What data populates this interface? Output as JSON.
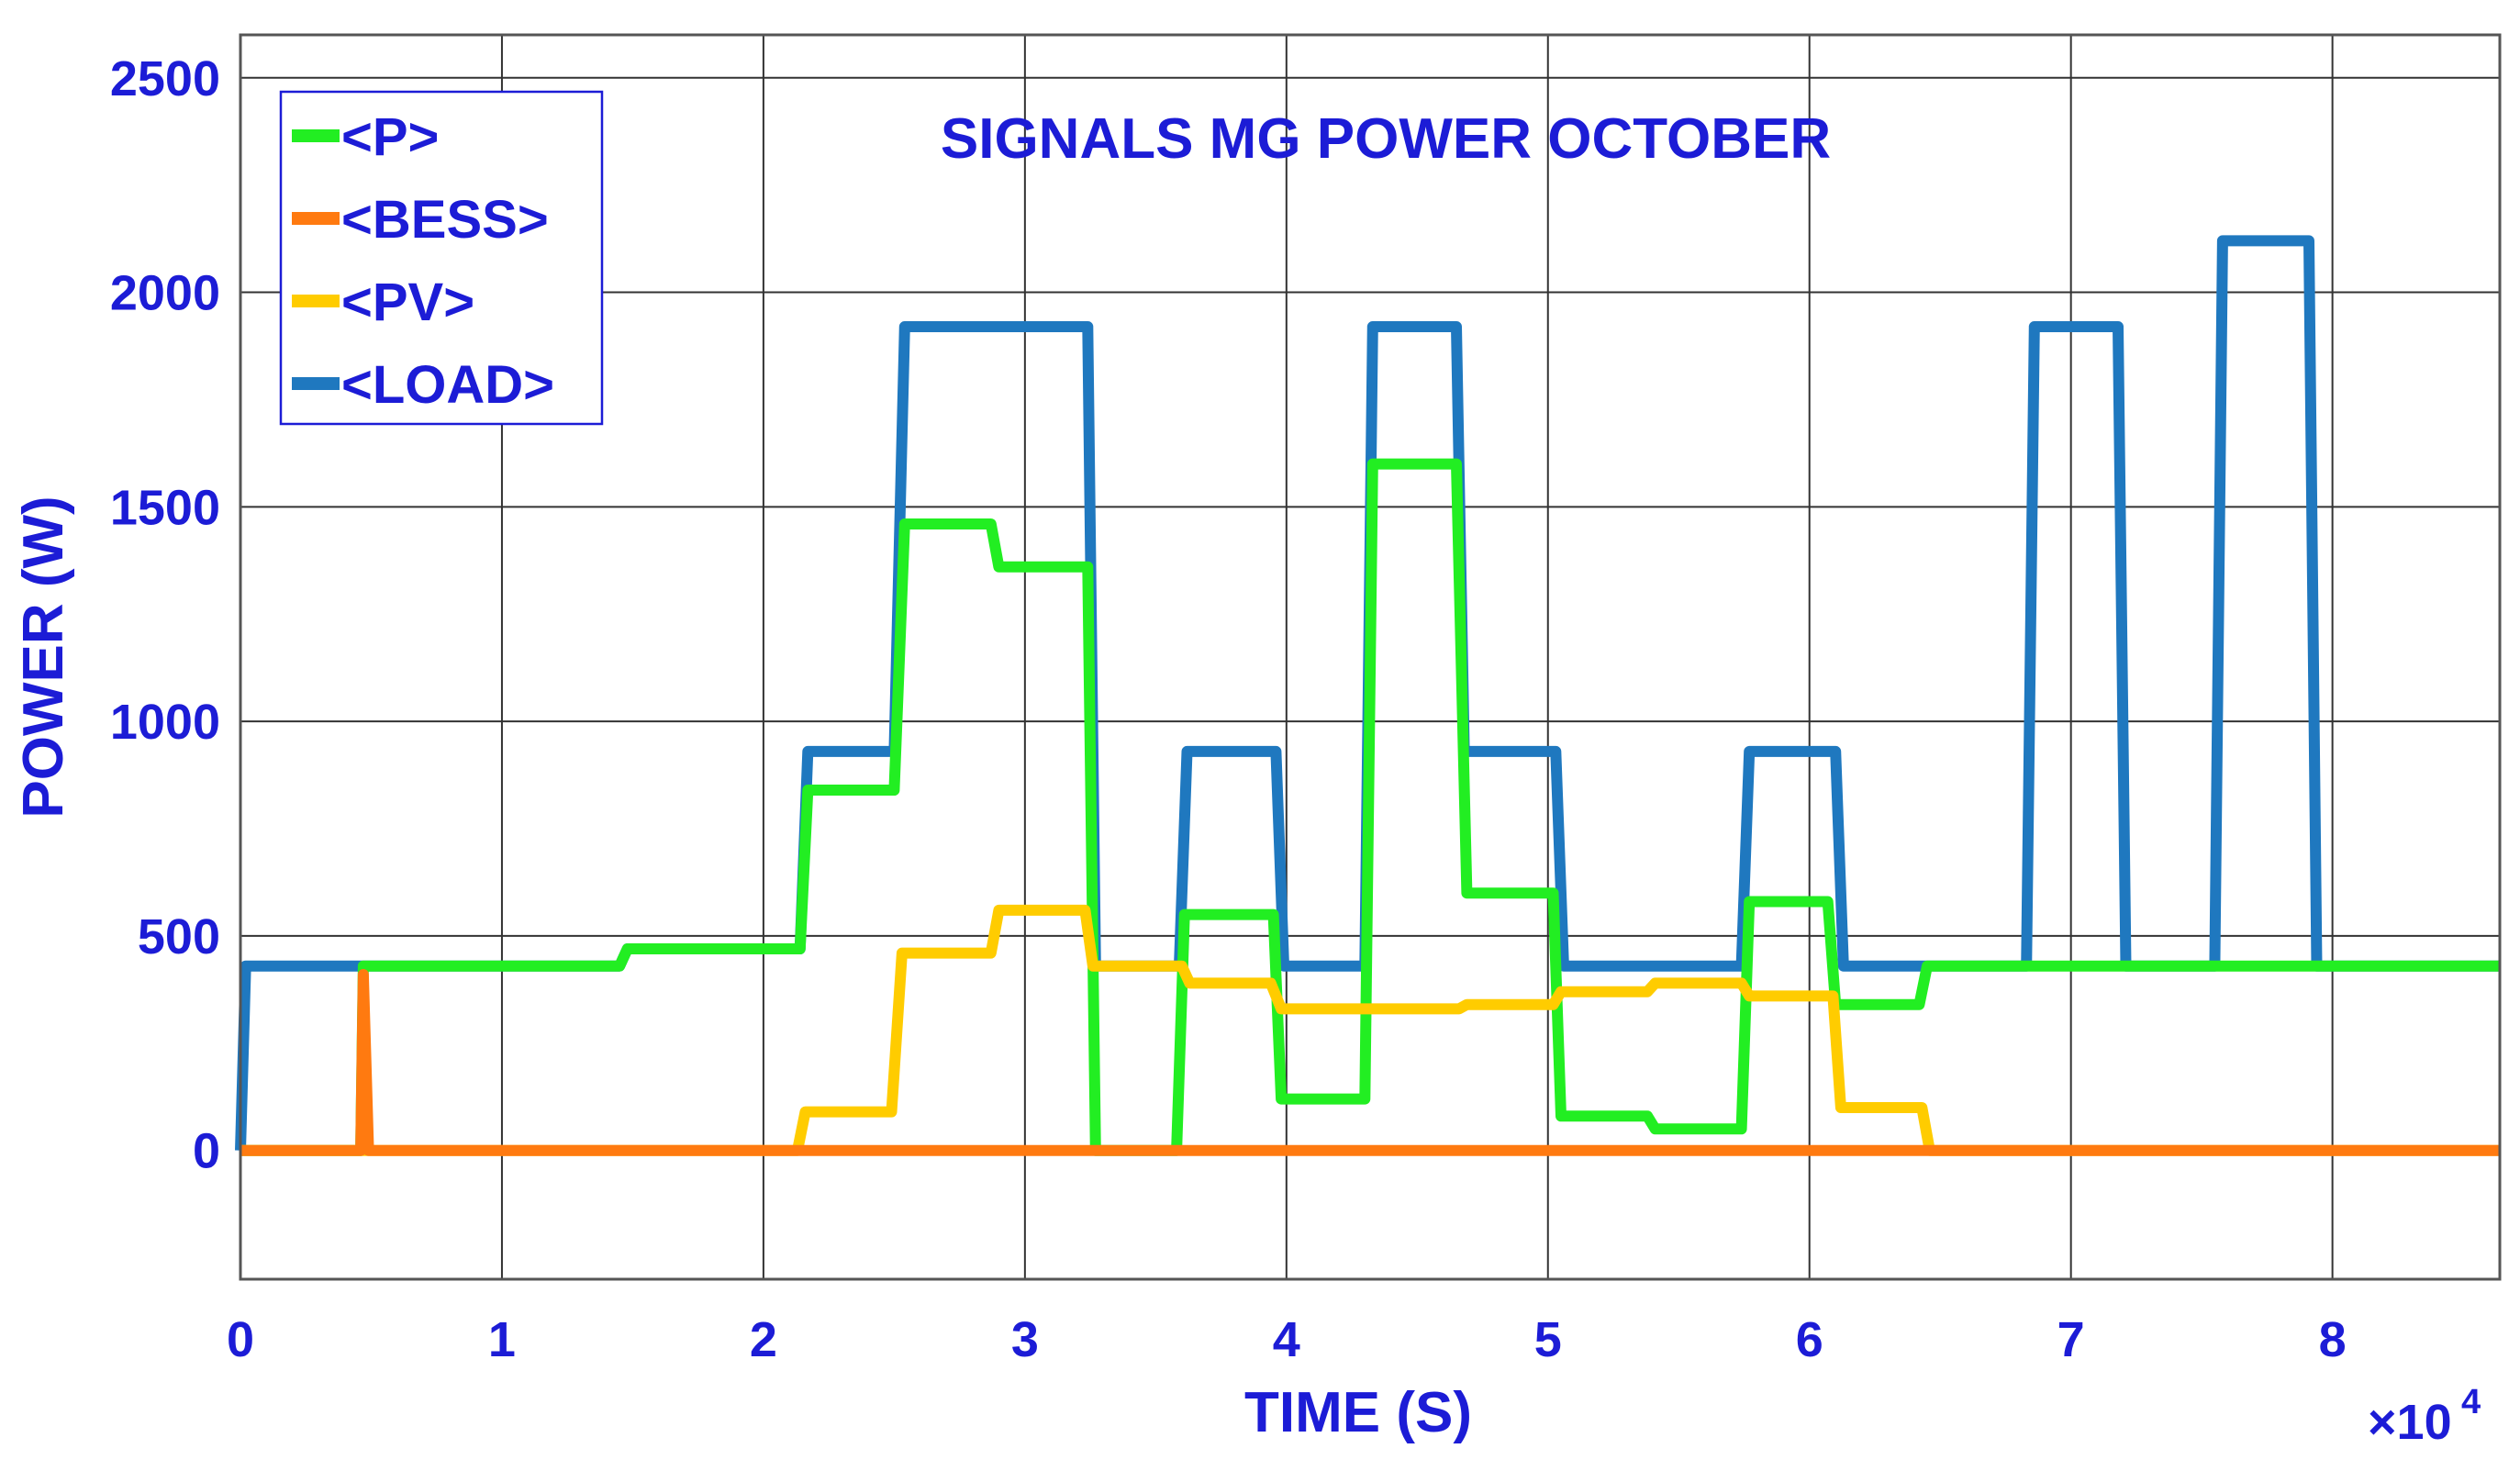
{
  "chart_data": {
    "type": "line",
    "title": "SIGNALS MG POWER OCTOBER",
    "xlabel": "TIME (S)",
    "ylabel": "POWER (W)",
    "x_multiplier_label": "×10",
    "x_multiplier_exponent": "4",
    "xlim": [
      0,
      86400
    ],
    "ylim": [
      -300,
      2600
    ],
    "x_tick_values": [
      0,
      10000,
      20000,
      30000,
      40000,
      50000,
      60000,
      70000,
      80000
    ],
    "x_tick_labels": [
      "0",
      "1",
      "2",
      "3",
      "4",
      "5",
      "6",
      "7",
      "8"
    ],
    "y_tick_values": [
      0,
      500,
      1000,
      1500,
      2000,
      2500
    ],
    "y_tick_labels": [
      "0",
      "500",
      "1000",
      "1500",
      "2000",
      "2500"
    ],
    "grid": true,
    "legend_position": "top-left",
    "series": [
      {
        "name": "<P>",
        "color": "#22ee22",
        "points": [
          [
            0,
            0
          ],
          [
            4600,
            0
          ],
          [
            4700,
            430
          ],
          [
            14500,
            430
          ],
          [
            14800,
            470
          ],
          [
            21400,
            470
          ],
          [
            21700,
            840
          ],
          [
            25000,
            840
          ],
          [
            25400,
            1460
          ],
          [
            28700,
            1460
          ],
          [
            29000,
            1360
          ],
          [
            32400,
            1360
          ],
          [
            32700,
            0
          ],
          [
            35800,
            0
          ],
          [
            36100,
            550
          ],
          [
            39500,
            550
          ],
          [
            39800,
            120
          ],
          [
            43000,
            120
          ],
          [
            43300,
            1600
          ],
          [
            46500,
            1600
          ],
          [
            46900,
            600
          ],
          [
            50200,
            600
          ],
          [
            50500,
            80
          ],
          [
            53800,
            80
          ],
          [
            54100,
            50
          ],
          [
            57400,
            50
          ],
          [
            57700,
            580
          ],
          [
            60700,
            580
          ],
          [
            61000,
            340
          ],
          [
            64200,
            340
          ],
          [
            64500,
            430
          ],
          [
            86400,
            430
          ]
        ]
      },
      {
        "name": "<BESS>",
        "color": "#ff7a10",
        "points": [
          [
            0,
            0
          ],
          [
            4600,
            0
          ],
          [
            4700,
            410
          ],
          [
            4900,
            0
          ],
          [
            64700,
            0
          ],
          [
            86400,
            0
          ]
        ]
      },
      {
        "name": "<PV>",
        "color": "#ffcc00",
        "points": [
          [
            0,
            0
          ],
          [
            21300,
            0
          ],
          [
            21600,
            90
          ],
          [
            24900,
            90
          ],
          [
            25300,
            460
          ],
          [
            28700,
            460
          ],
          [
            29000,
            560
          ],
          [
            32300,
            560
          ],
          [
            32600,
            430
          ],
          [
            36000,
            430
          ],
          [
            36300,
            390
          ],
          [
            39400,
            390
          ],
          [
            39800,
            330
          ],
          [
            46600,
            330
          ],
          [
            46900,
            340
          ],
          [
            50200,
            340
          ],
          [
            50500,
            370
          ],
          [
            53800,
            370
          ],
          [
            54100,
            390
          ],
          [
            57400,
            390
          ],
          [
            57700,
            360
          ],
          [
            60900,
            360
          ],
          [
            61200,
            100
          ],
          [
            64300,
            100
          ],
          [
            64600,
            0
          ],
          [
            86400,
            0
          ]
        ]
      },
      {
        "name": "<LOAD>",
        "color": "#1f78bf",
        "points": [
          [
            0,
            0
          ],
          [
            200,
            430
          ],
          [
            14500,
            430
          ],
          [
            14800,
            470
          ],
          [
            21400,
            470
          ],
          [
            21700,
            930
          ],
          [
            25000,
            930
          ],
          [
            25400,
            1920
          ],
          [
            32400,
            1920
          ],
          [
            32700,
            430
          ],
          [
            35900,
            430
          ],
          [
            36200,
            930
          ],
          [
            39600,
            930
          ],
          [
            39900,
            430
          ],
          [
            43000,
            430
          ],
          [
            43300,
            1920
          ],
          [
            46500,
            1920
          ],
          [
            46800,
            930
          ],
          [
            50300,
            930
          ],
          [
            50600,
            430
          ],
          [
            57400,
            430
          ],
          [
            57700,
            930
          ],
          [
            61000,
            930
          ],
          [
            61300,
            430
          ],
          [
            68300,
            430
          ],
          [
            68600,
            1920
          ],
          [
            71800,
            1920
          ],
          [
            72100,
            430
          ],
          [
            75500,
            430
          ],
          [
            75800,
            2120
          ],
          [
            79100,
            2120
          ],
          [
            79400,
            430
          ],
          [
            86400,
            430
          ]
        ]
      }
    ]
  }
}
